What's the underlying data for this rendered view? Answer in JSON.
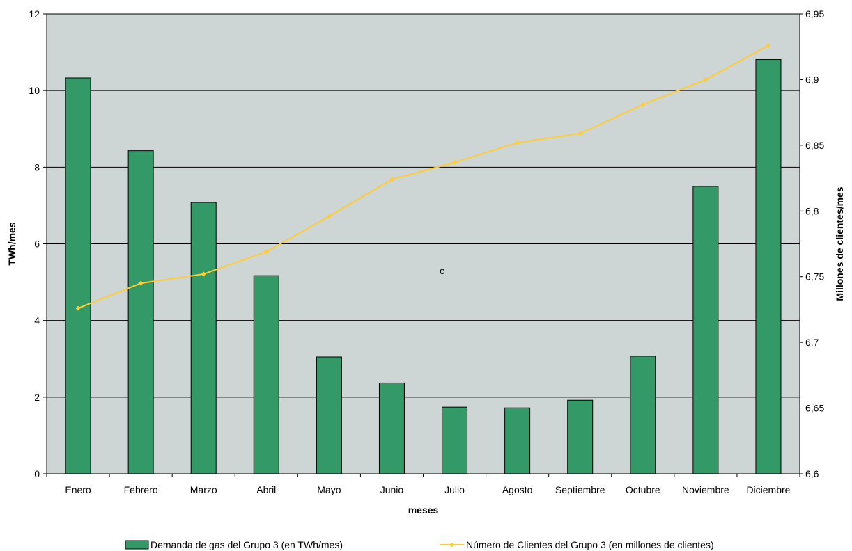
{
  "chart_data": {
    "type": "bar",
    "categories": [
      "Enero",
      "Febrero",
      "Marzo",
      "Abril",
      "Mayo",
      "Junio",
      "Julio",
      "Agosto",
      "Septiembre",
      "Octubre",
      "Noviembre",
      "Diciembre"
    ],
    "series": [
      {
        "name": "Demanda de gas del Grupo 3 (en TWh/mes)",
        "type": "bar",
        "axis": "left",
        "color": "#339966",
        "values": [
          10.33,
          8.43,
          7.08,
          5.17,
          3.05,
          2.37,
          1.74,
          1.72,
          1.92,
          3.07,
          7.5,
          10.81
        ]
      },
      {
        "name": "Número de Clientes del Grupo 3 (en millones de clientes)",
        "type": "line",
        "axis": "right",
        "color": "#ffcc33",
        "values": [
          6.726,
          6.745,
          6.752,
          6.769,
          6.796,
          6.824,
          6.837,
          6.852,
          6.859,
          6.881,
          6.9,
          6.926
        ]
      }
    ],
    "xlabel": "meses",
    "ylabel": "TWh/mes",
    "y2label": "Millones de clientes/mes",
    "ylim": [
      0,
      12
    ],
    "yticks": [
      0,
      2,
      4,
      6,
      8,
      10,
      12
    ],
    "yticklabels": [
      "0",
      "2",
      "4",
      "6",
      "8",
      "10",
      "12"
    ],
    "y2lim": [
      6.6,
      6.95
    ],
    "y2ticks": [
      6.6,
      6.65,
      6.7,
      6.75,
      6.8,
      6.85,
      6.9,
      6.95
    ],
    "y2ticklabels": [
      "6,6",
      "6,65",
      "6,7",
      "6,75",
      "6,8",
      "6,85",
      "6,9",
      "6,95"
    ],
    "annotation": "c",
    "grid": true,
    "legend_position": "bottom",
    "plot_background": "#cdd5d5"
  }
}
